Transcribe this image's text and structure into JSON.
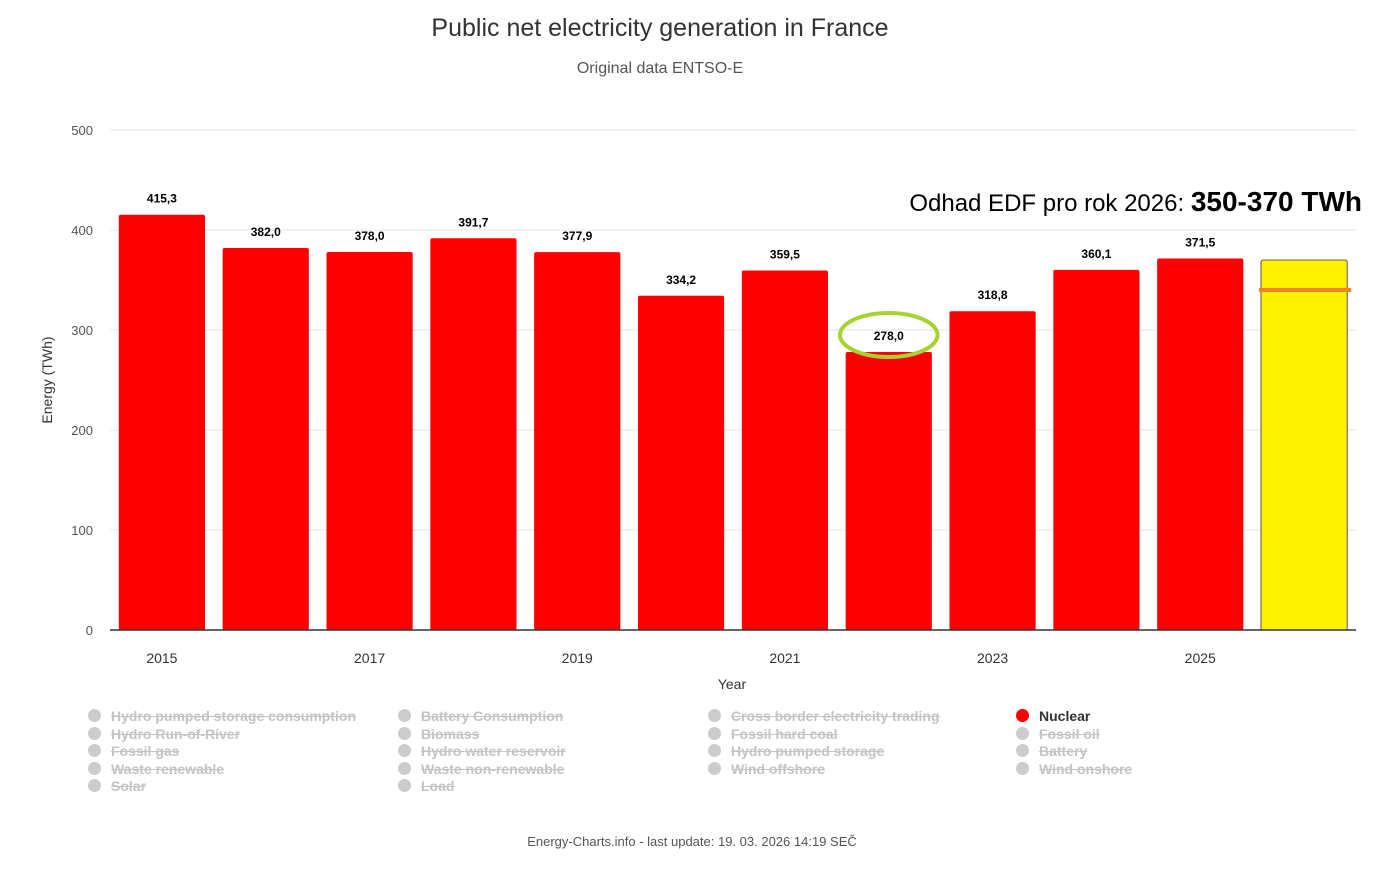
{
  "chart_data": {
    "type": "bar",
    "title": "Public net electricity generation in France",
    "subtitle": "Original data ENTSO-E",
    "xlabel": "Year",
    "ylabel": "Energy (TWh)",
    "ylim": [
      0,
      500
    ],
    "yticks": [
      "0",
      "100",
      "200",
      "300",
      "400",
      "500"
    ],
    "categories": [
      "2015",
      "2016",
      "2017",
      "2018",
      "2019",
      "2020",
      "2021",
      "2022",
      "2023",
      "2024",
      "2025",
      "2026"
    ],
    "xtick_labels": [
      "2015",
      "",
      "2017",
      "",
      "2019",
      "",
      "2021",
      "",
      "2023",
      "",
      "2025",
      ""
    ],
    "series": [
      {
        "name": "Nuclear",
        "color": "#ff0000",
        "values": [
          415.3,
          382.0,
          378.0,
          391.7,
          377.9,
          334.2,
          359.5,
          278.0,
          318.8,
          360.1,
          371.5,
          370
        ],
        "labels": [
          "415,3",
          "382,0",
          "378,0",
          "391,7",
          "377,9",
          "334,2",
          "359,5",
          "278,0",
          "318,8",
          "360,1",
          "371,5",
          ""
        ]
      }
    ],
    "estimate": {
      "category": "2026",
      "low": 350,
      "high": 370,
      "marker_value": 340,
      "fill_color": "#fff200",
      "marker_color": "#f58220"
    },
    "highlight": {
      "category": "2022",
      "color": "#a6d32f"
    }
  },
  "annotation": {
    "prefix": "Odhad EDF pro rok 2026:",
    "value": "350-370 TWh"
  },
  "legend": [
    {
      "label": "Hydro pumped storage consumption",
      "active": false
    },
    {
      "label": "Battery Consumption",
      "active": false
    },
    {
      "label": "Cross border electricity trading",
      "active": false
    },
    {
      "label": "Nuclear",
      "active": true
    },
    {
      "label": "Hydro Run-of-River",
      "active": false
    },
    {
      "label": "Biomass",
      "active": false
    },
    {
      "label": "Fossil hard coal",
      "active": false
    },
    {
      "label": "Fossil oil",
      "active": false
    },
    {
      "label": "Fossil gas",
      "active": false
    },
    {
      "label": "Hydro water reservoir",
      "active": false
    },
    {
      "label": "Hydro pumped storage",
      "active": false
    },
    {
      "label": "Battery",
      "active": false
    },
    {
      "label": "Waste renewable",
      "active": false
    },
    {
      "label": "Waste non-renewable",
      "active": false
    },
    {
      "label": "Wind offshore",
      "active": false
    },
    {
      "label": "Wind onshore",
      "active": false
    },
    {
      "label": "Solar",
      "active": false
    },
    {
      "label": "Load",
      "active": false
    }
  ],
  "credits": "Energy-Charts.info - last update: 19. 03. 2026 14:19 SEČ"
}
